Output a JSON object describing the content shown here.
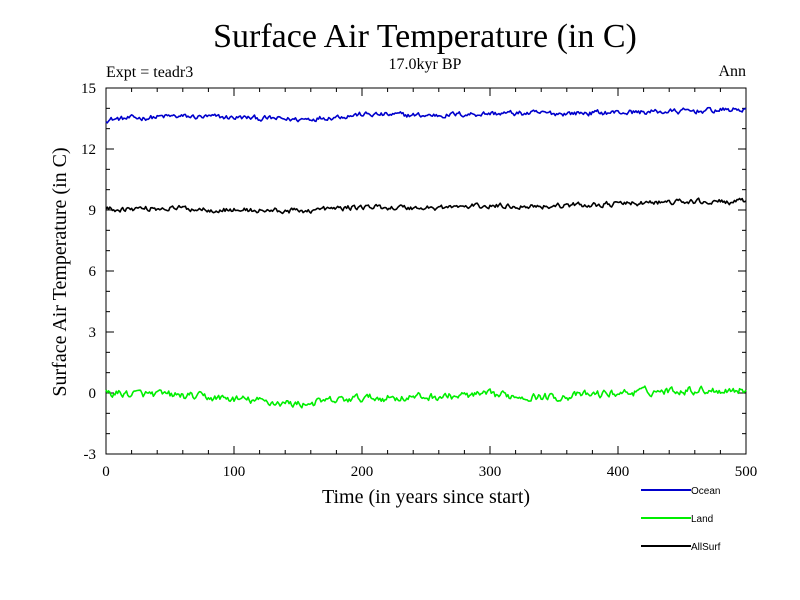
{
  "chart_data": {
    "type": "line",
    "title": "Surface Air Temperature (in C)",
    "subtitle": "17.0kyr BP",
    "annotations": {
      "left": "Expt = teadr3",
      "right": "Ann"
    },
    "xlabel": "Time (in years since start)",
    "ylabel": "Surface Air Temperature (in C)",
    "xlim": [
      0,
      500
    ],
    "ylim": [
      -3,
      15
    ],
    "xticks": [
      0,
      100,
      200,
      300,
      400,
      500
    ],
    "yticks": [
      -3,
      0,
      3,
      6,
      9,
      12,
      15
    ],
    "x_step": 1,
    "legend_position": "bottom-right, below plot",
    "series": [
      {
        "name": "Ocean",
        "color": "#0000cc",
        "start": 13.5,
        "end": 13.95,
        "noise": 0.11,
        "anchors": [
          [
            0,
            13.45
          ],
          [
            50,
            13.6
          ],
          [
            100,
            13.55
          ],
          [
            150,
            13.45
          ],
          [
            200,
            13.7
          ],
          [
            250,
            13.65
          ],
          [
            300,
            13.75
          ],
          [
            350,
            13.75
          ],
          [
            400,
            13.8
          ],
          [
            450,
            13.85
          ],
          [
            500,
            13.95
          ]
        ]
      },
      {
        "name": "Land",
        "color": "#00ee00",
        "noise": 0.16,
        "anchors": [
          [
            0,
            0.0
          ],
          [
            50,
            -0.1
          ],
          [
            100,
            -0.3
          ],
          [
            150,
            -0.55
          ],
          [
            200,
            -0.25
          ],
          [
            250,
            -0.2
          ],
          [
            300,
            -0.1
          ],
          [
            350,
            -0.2
          ],
          [
            400,
            0.0
          ],
          [
            450,
            0.15
          ],
          [
            500,
            0.15
          ]
        ]
      },
      {
        "name": "AllSurf",
        "color": "#000000",
        "noise": 0.11,
        "anchors": [
          [
            0,
            9.05
          ],
          [
            50,
            9.1
          ],
          [
            100,
            9.0
          ],
          [
            150,
            8.95
          ],
          [
            200,
            9.15
          ],
          [
            250,
            9.1
          ],
          [
            300,
            9.2
          ],
          [
            350,
            9.2
          ],
          [
            400,
            9.3
          ],
          [
            450,
            9.4
          ],
          [
            500,
            9.4
          ]
        ]
      }
    ]
  }
}
